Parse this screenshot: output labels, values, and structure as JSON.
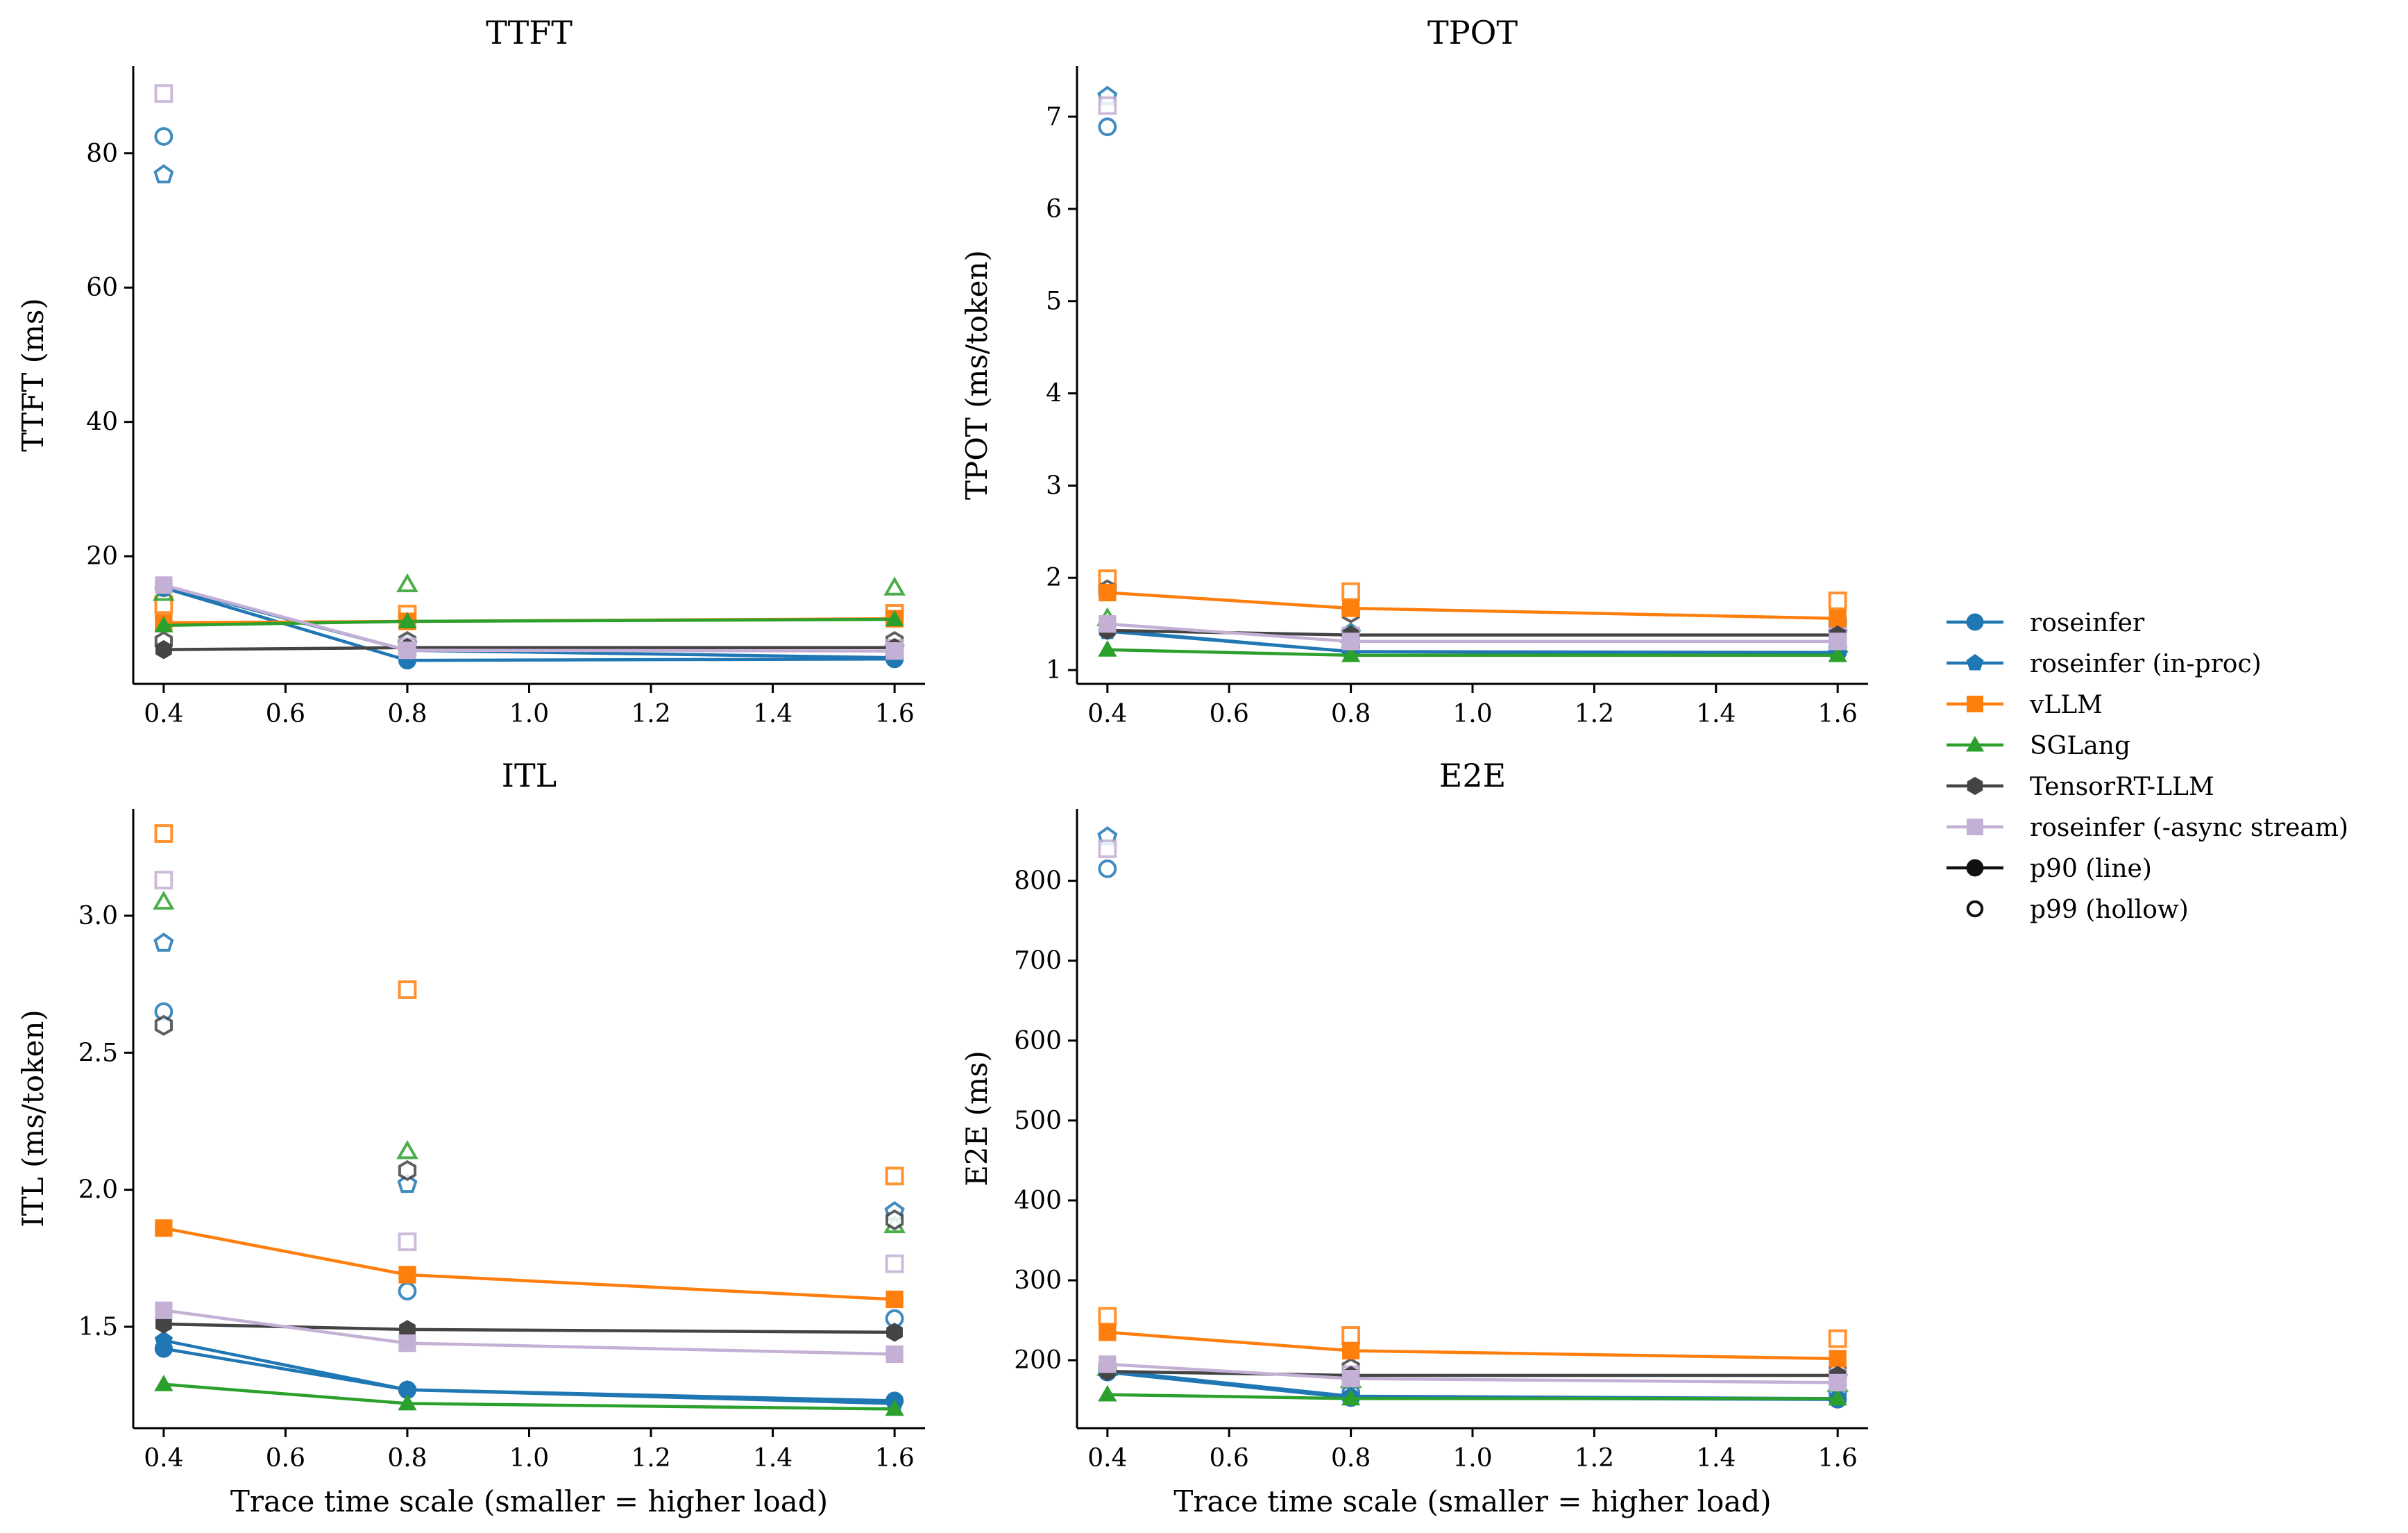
{
  "chart_data": [
    {
      "type": "line",
      "title": "TTFT",
      "ylabel": "TTFT (ms)",
      "xlabel": "",
      "x": [
        0.4,
        0.8,
        1.6
      ],
      "xlim": [
        0.35,
        1.65
      ],
      "ylim": [
        1,
        93
      ],
      "xticks": [
        "0.4",
        "0.6",
        "0.8",
        "1.0",
        "1.2",
        "1.4",
        "1.6"
      ],
      "yticks": [
        "20",
        "40",
        "60",
        "80"
      ],
      "series": [
        {
          "name": "roseinfer",
          "p90": [
            15.3,
            4.5,
            4.7
          ],
          "p99": [
            82.5,
            6.3,
            5.1
          ]
        },
        {
          "name": "roseinfer (in-proc)",
          "p90": [
            15.5,
            6.0,
            4.9
          ],
          "p99": [
            76.8,
            6.9,
            6.3
          ]
        },
        {
          "name": "vLLM",
          "p90": [
            10.1,
            10.3,
            10.7
          ],
          "p99": [
            12.8,
            11.4,
            11.5
          ]
        },
        {
          "name": "SGLang",
          "p90": [
            9.7,
            10.3,
            10.6
          ],
          "p99": [
            14.5,
            15.8,
            15.3
          ]
        },
        {
          "name": "TensorRT-LLM",
          "p90": [
            6.1,
            6.4,
            6.4
          ],
          "p99": [
            7.3,
            7.3,
            7.3
          ]
        },
        {
          "name": "roseinfer (-async stream)",
          "p90": [
            15.7,
            6.0,
            5.9
          ],
          "p99": [
            88.9,
            6.5,
            6.3
          ]
        }
      ]
    },
    {
      "type": "line",
      "title": "TPOT",
      "ylabel": "TPOT (ms/token)",
      "xlabel": "",
      "x": [
        0.4,
        0.8,
        1.6
      ],
      "xlim": [
        0.35,
        1.65
      ],
      "ylim": [
        0.85,
        7.55
      ],
      "xticks": [
        "0.4",
        "0.6",
        "0.8",
        "1.0",
        "1.2",
        "1.4",
        "1.6"
      ],
      "yticks": [
        "1",
        "2",
        "3",
        "4",
        "5",
        "6",
        "7"
      ],
      "series": [
        {
          "name": "roseinfer",
          "p90": [
            1.43,
            1.2,
            1.19
          ],
          "p99": [
            6.89,
            1.25,
            1.25
          ]
        },
        {
          "name": "roseinfer (in-proc)",
          "p90": [
            1.42,
            1.2,
            1.18
          ],
          "p99": [
            7.22,
            1.4,
            1.4
          ]
        },
        {
          "name": "vLLM",
          "p90": [
            1.84,
            1.67,
            1.56
          ],
          "p99": [
            1.99,
            1.85,
            1.75
          ]
        },
        {
          "name": "SGLang",
          "p90": [
            1.22,
            1.16,
            1.16
          ],
          "p99": [
            1.56,
            1.38,
            1.27
          ]
        },
        {
          "name": "TensorRT-LLM",
          "p90": [
            1.43,
            1.38,
            1.38
          ],
          "p99": [
            1.87,
            1.62,
            1.52
          ]
        },
        {
          "name": "roseinfer (-async stream)",
          "p90": [
            1.5,
            1.31,
            1.31
          ],
          "p99": [
            7.12,
            1.37,
            1.38
          ]
        }
      ]
    },
    {
      "type": "line",
      "title": "ITL",
      "ylabel": "ITL (ms/token)",
      "xlabel": "Trace time scale (smaller = higher load)",
      "x": [
        0.4,
        0.8,
        1.6
      ],
      "xlim": [
        0.35,
        1.65
      ],
      "ylim": [
        1.13,
        3.39
      ],
      "xticks": [
        "0.4",
        "0.6",
        "0.8",
        "1.0",
        "1.2",
        "1.4",
        "1.6"
      ],
      "yticks": [
        "1.5",
        "2.0",
        "2.5",
        "3.0"
      ],
      "series": [
        {
          "name": "roseinfer",
          "p90": [
            1.42,
            1.27,
            1.23
          ],
          "p99": [
            2.65,
            1.63,
            1.53
          ]
        },
        {
          "name": "roseinfer (in-proc)",
          "p90": [
            1.45,
            1.27,
            1.22
          ],
          "p99": [
            2.9,
            2.02,
            1.92
          ]
        },
        {
          "name": "vLLM",
          "p90": [
            1.86,
            1.69,
            1.6
          ],
          "p99": [
            3.3,
            2.73,
            2.05
          ]
        },
        {
          "name": "SGLang",
          "p90": [
            1.29,
            1.22,
            1.2
          ],
          "p99": [
            3.05,
            2.14,
            1.87
          ]
        },
        {
          "name": "TensorRT-LLM",
          "p90": [
            1.51,
            1.49,
            1.48
          ],
          "p99": [
            2.6,
            2.07,
            1.89
          ]
        },
        {
          "name": "roseinfer (-async stream)",
          "p90": [
            1.56,
            1.44,
            1.4
          ],
          "p99": [
            3.13,
            1.81,
            1.73
          ]
        }
      ]
    },
    {
      "type": "line",
      "title": "E2E",
      "ylabel": "E2E (ms)",
      "xlabel": "Trace time scale (smaller = higher load)",
      "x": [
        0.4,
        0.8,
        1.6
      ],
      "xlim": [
        0.35,
        1.65
      ],
      "ylim": [
        115,
        890
      ],
      "xticks": [
        "0.4",
        "0.6",
        "0.8",
        "1.0",
        "1.2",
        "1.4",
        "1.6"
      ],
      "yticks": [
        "200",
        "300",
        "400",
        "500",
        "600",
        "700",
        "800"
      ],
      "series": [
        {
          "name": "roseinfer",
          "p90": [
            185,
            153,
            151
          ],
          "p99": [
            815,
            160,
            160
          ]
        },
        {
          "name": "roseinfer (in-proc)",
          "p90": [
            187,
            155,
            152
          ],
          "p99": [
            855,
            175,
            178
          ]
        },
        {
          "name": "vLLM",
          "p90": [
            235,
            212,
            202
          ],
          "p99": [
            255,
            231,
            227
          ]
        },
        {
          "name": "SGLang",
          "p90": [
            157,
            152,
            152
          ],
          "p99": [
            190,
            175,
            170
          ]
        },
        {
          "name": "TensorRT-LLM",
          "p90": [
            186,
            181,
            181
          ],
          "p99": [
            190,
            190,
            186
          ]
        },
        {
          "name": "roseinfer (-async stream)",
          "p90": [
            195,
            177,
            172
          ],
          "p99": [
            840,
            182,
            178
          ]
        }
      ]
    }
  ],
  "legend": {
    "placement": "right",
    "entries": [
      {
        "label": "roseinfer",
        "color": "#1f77b4",
        "marker": "circle",
        "style": "line"
      },
      {
        "label": "roseinfer (in-proc)",
        "color": "#1f77b4",
        "marker": "pentagon",
        "style": "line"
      },
      {
        "label": "vLLM",
        "color": "#ff7f0e",
        "marker": "square",
        "style": "line"
      },
      {
        "label": "SGLang",
        "color": "#2ca02c",
        "marker": "triangle",
        "style": "line"
      },
      {
        "label": "TensorRT-LLM",
        "color": "#444444",
        "marker": "hexagon",
        "style": "line"
      },
      {
        "label": "roseinfer (-async stream)",
        "color": "#c5b0d5",
        "marker": "square",
        "style": "line"
      },
      {
        "label": "p90 (line)",
        "color": "#111111",
        "marker": "circle",
        "style": "line"
      },
      {
        "label": "p99 (hollow)",
        "color": "#111111",
        "marker": "circle",
        "style": "hollow"
      }
    ]
  },
  "series_styles": [
    {
      "color": "#1f77b4",
      "marker": "circle"
    },
    {
      "color": "#1f77b4",
      "marker": "pentagon"
    },
    {
      "color": "#ff7f0e",
      "marker": "square"
    },
    {
      "color": "#2ca02c",
      "marker": "triangle"
    },
    {
      "color": "#444444",
      "marker": "hexagon"
    },
    {
      "color": "#c5b0d5",
      "marker": "square"
    }
  ]
}
